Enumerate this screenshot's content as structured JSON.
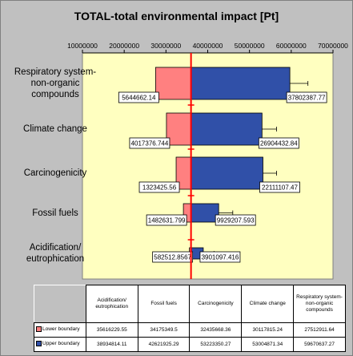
{
  "chart_data": {
    "type": "bar",
    "orientation": "horizontal",
    "style": "tornado",
    "title": "TOTAL-total environmental impact [Pt]",
    "xlabel": "",
    "ylabel": "",
    "xlim": [
      10000000,
      70000000
    ],
    "xticks": [
      "10000000",
      "20000000",
      "30000000",
      "40000000",
      "50000000",
      "60000000",
      "70000000"
    ],
    "baseline": 36000000,
    "categories": [
      "Respiratory system-\nnon-organic\ncompounds",
      "Climate change",
      "Carcinogenicity",
      "Fossil fuels",
      "Acidification/\neutrophication"
    ],
    "series": [
      {
        "name": "Lower boundary",
        "color": "#ff8080",
        "values": [
          27512911.64,
          30117815.24,
          32435668.36,
          34175349.5,
          35616229.55
        ],
        "labels": [
          "5644662.14",
          "4017376.744",
          "1323425.56",
          "1482631.799",
          "582512.8567"
        ]
      },
      {
        "name": "Upper boundary",
        "color": "#3050a8",
        "values": [
          59670637.27,
          53004871.34,
          53223350.27,
          42621925.29,
          38934814.11
        ],
        "labels": [
          "37802387.77",
          "26904432.84",
          "22111107.47",
          "9929207.593",
          "3901097.416"
        ]
      }
    ],
    "error_ends": [
      64000000,
      56500000,
      56500000,
      46000000,
      41500000
    ],
    "plot_background": "#ffffc0",
    "baseline_color": "#ff0000",
    "table": {
      "columns": [
        "Acidification/\neutrophication",
        "Fossil fuels",
        "Carcinogenicity",
        "Climate change",
        "Respiratory system-\nnon-organic\ncompounds"
      ],
      "rows": [
        {
          "label": "Lower boundary",
          "color": "#ff8080",
          "values": [
            "35616229.55",
            "34175349.5",
            "32435668.36",
            "30117815.24",
            "27512911.64"
          ]
        },
        {
          "label": "Upper boundary",
          "color": "#3050a8",
          "values": [
            "38934814.11",
            "42621925.29",
            "53223350.27",
            "53004871.34",
            "59670637.27"
          ]
        }
      ]
    }
  }
}
